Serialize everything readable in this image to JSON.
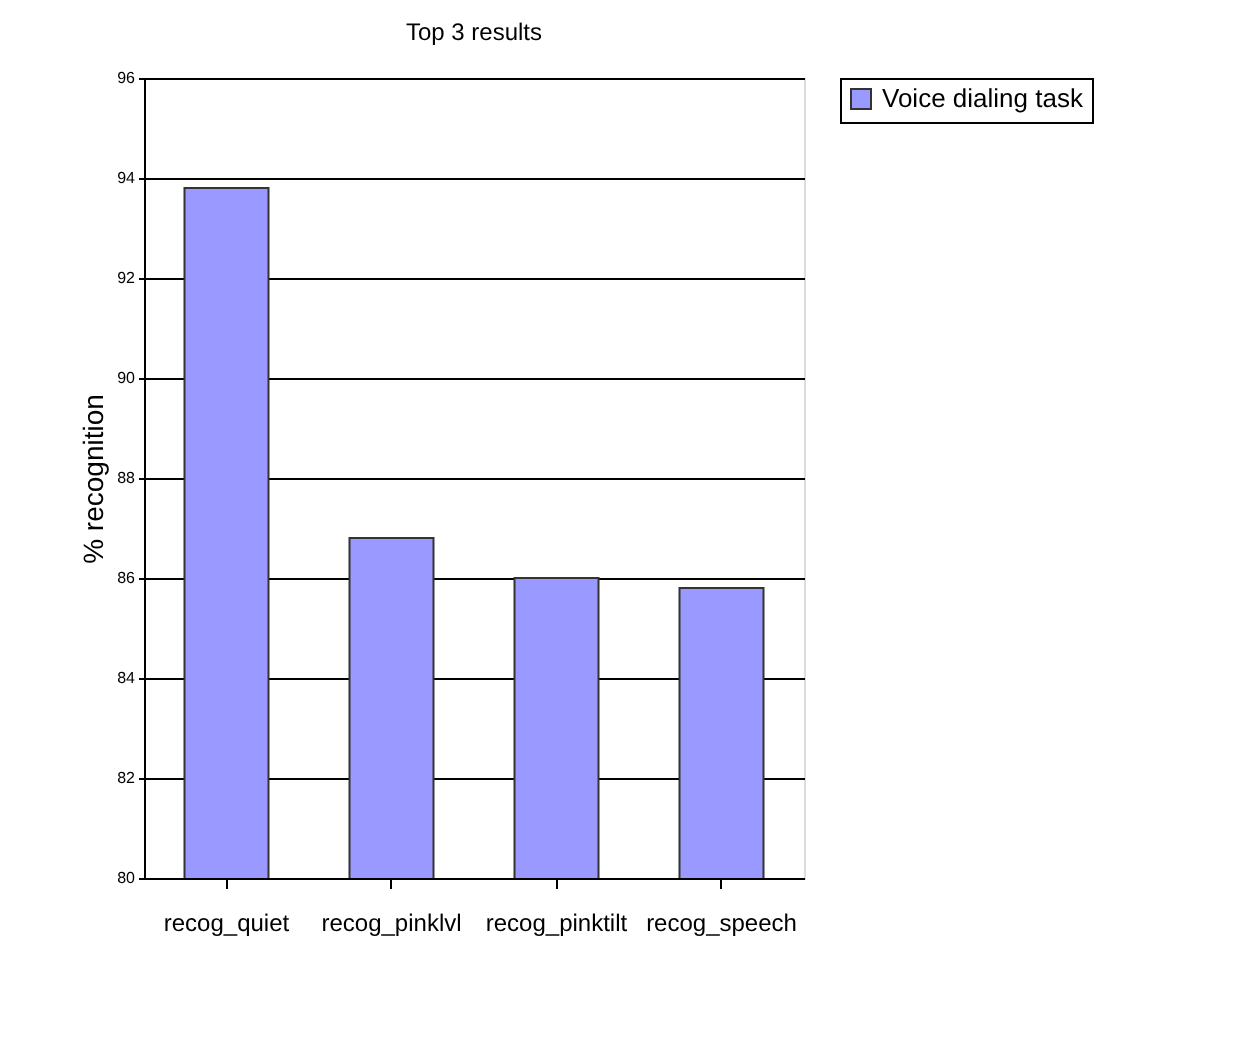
{
  "chart_data": {
    "type": "bar",
    "title": "Top 3 results",
    "ylabel": "% recognition",
    "categories": [
      "recog_quiet",
      "recog_pinklvl",
      "recog_pinktilt",
      "recog_speech"
    ],
    "series": [
      {
        "name": "Voice dialing task",
        "color": "#9999ff",
        "values": [
          93.8,
          86.8,
          86.0,
          85.8
        ]
      }
    ],
    "ylim": [
      80,
      96
    ],
    "yticks": [
      80,
      82,
      84,
      86,
      88,
      90,
      92,
      94,
      96
    ],
    "grid": "y",
    "legend": "right"
  }
}
